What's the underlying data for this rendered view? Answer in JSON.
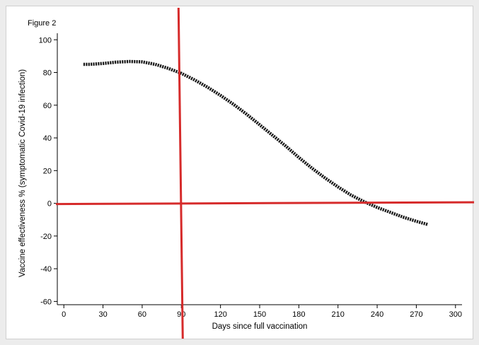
{
  "chart_data": {
    "type": "line",
    "figure_label": "Figure 2",
    "title": "",
    "xlabel": "Days since full vaccination",
    "ylabel": "Vaccine effectiveness % (symptomatic Covid-19 infection)",
    "xlim": [
      -5,
      305
    ],
    "ylim": [
      -62,
      104
    ],
    "xticks": [
      0,
      30,
      60,
      90,
      120,
      150,
      180,
      210,
      240,
      270,
      300
    ],
    "yticks": [
      -60,
      -40,
      -20,
      0,
      20,
      40,
      60,
      80,
      100
    ],
    "grid": false,
    "series": [
      {
        "x": [
          15,
          20,
          30,
          40,
          50,
          60,
          70,
          80,
          90,
          100,
          110,
          120,
          130,
          140,
          150,
          160,
          170,
          180,
          190,
          200,
          210,
          220,
          230,
          240,
          250,
          260,
          270,
          279
        ],
        "y": [
          85,
          85,
          85.5,
          86.3,
          86.7,
          86.5,
          85,
          82.5,
          79.5,
          75.5,
          71,
          66,
          60.5,
          54.5,
          48,
          41.5,
          35,
          28,
          21.5,
          15.5,
          10,
          5,
          1,
          -2.5,
          -5.5,
          -8.5,
          -11,
          -13
        ],
        "color": "#1a1a1a"
      }
    ],
    "annotations": [
      {
        "type": "vline",
        "x": 90,
        "color": "#d62b2b"
      },
      {
        "type": "hline",
        "y": 0,
        "color": "#d62b2b"
      }
    ]
  }
}
